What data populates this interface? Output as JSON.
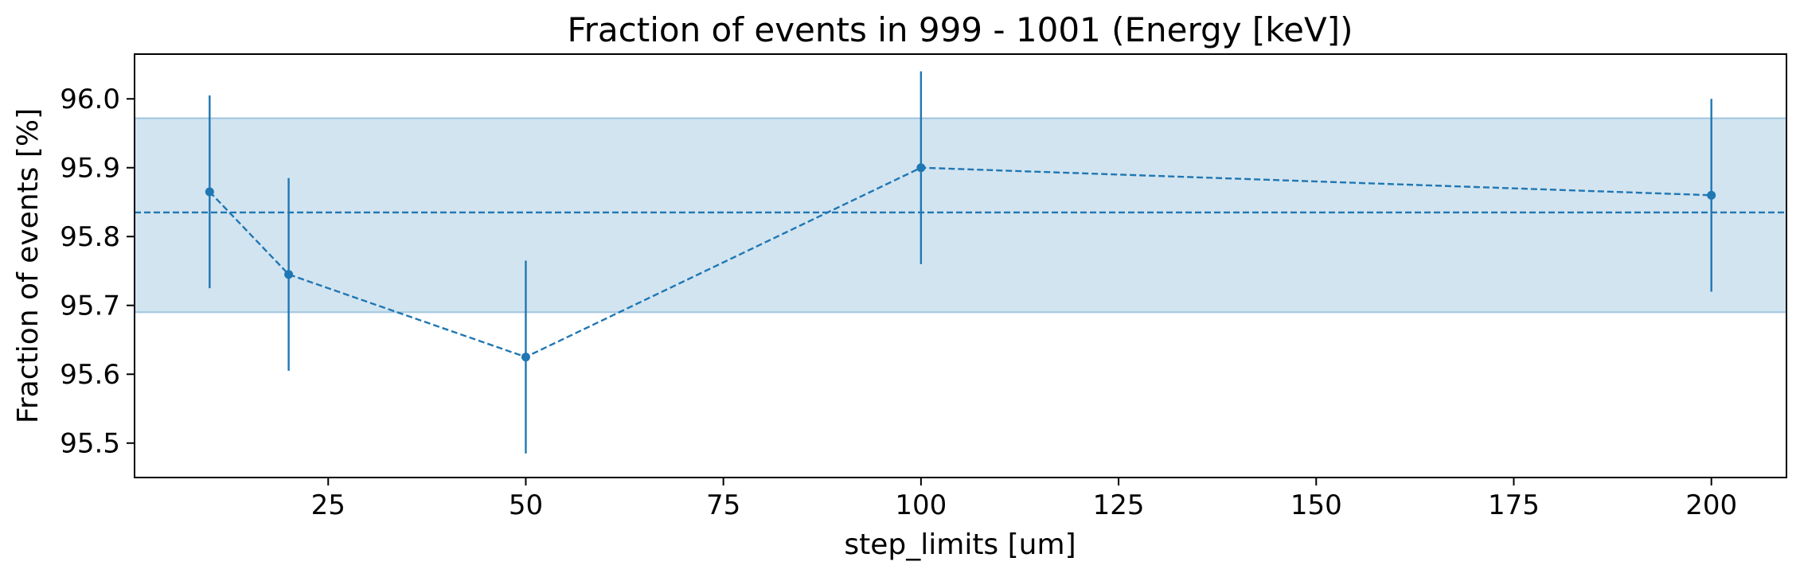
{
  "chart_data": {
    "type": "line",
    "title": "Fraction of events in 999 - 1001 (Energy [keV])",
    "xlabel": "step_limits [um]",
    "ylabel": "Fraction of events [%]",
    "xlim": [
      0.5,
      209.5
    ],
    "ylim": [
      95.45,
      96.065
    ],
    "xticks": [
      25,
      50,
      75,
      100,
      125,
      150,
      175,
      200
    ],
    "yticks": [
      95.5,
      95.6,
      95.7,
      95.8,
      95.9,
      96.0
    ],
    "xtick_labels": [
      "25",
      "50",
      "75",
      "100",
      "125",
      "150",
      "175",
      "200"
    ],
    "ytick_labels": [
      "95.5",
      "95.6",
      "95.7",
      "95.8",
      "95.9",
      "96.0"
    ],
    "grid": false,
    "series": [
      {
        "x": [
          10,
          20,
          50,
          100,
          200
        ],
        "y": [
          95.865,
          95.745,
          95.625,
          95.9,
          95.86
        ],
        "yerr": [
          0.14,
          0.14,
          0.14,
          0.14,
          0.14
        ],
        "line_style": "dashed",
        "marker": "circle"
      }
    ],
    "mean_line": {
      "y": 95.835,
      "line_style": "dashed"
    },
    "band": {
      "y_low": 95.69,
      "y_high": 95.972
    },
    "colors": {
      "series": "#1f77b4",
      "band": "#1f77b4",
      "band_opacity": 0.2
    }
  }
}
